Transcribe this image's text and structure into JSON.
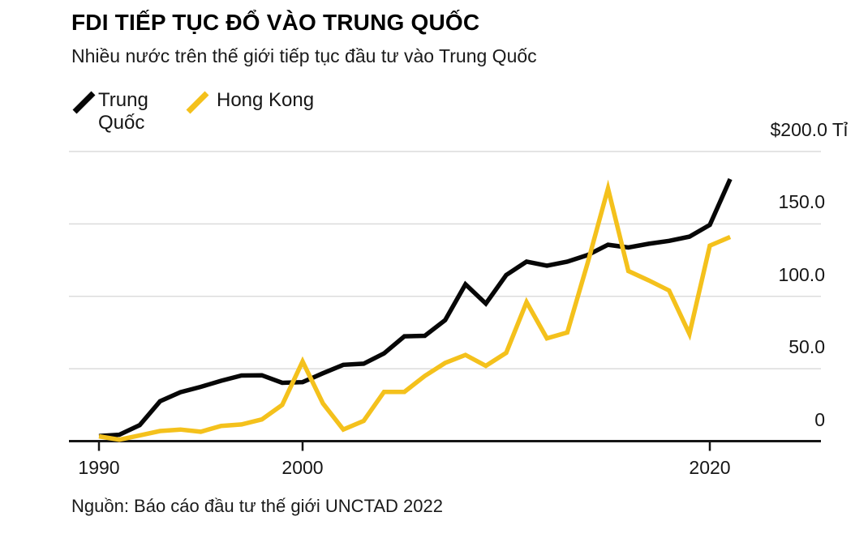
{
  "header": {
    "title": "FDI TIẾP TỤC ĐỔ VÀO TRUNG QUỐC",
    "subtitle": "Nhiều nước trên thế giới tiếp tục đầu tư vào Trung Quốc"
  },
  "legend": [
    {
      "label": "Trung Quốc",
      "color": "#070707"
    },
    {
      "label": "Hong Kong",
      "color": "#F4C11C"
    }
  ],
  "source": "Nguồn: Báo cáo đầu tư thế giới UNCTAD 2022",
  "colors": {
    "background": "#ffffff",
    "gridline": "#dcdcdc",
    "axis": "#161616",
    "text": "#161616",
    "china_line": "#070707",
    "hong_kong_line": "#F4C11C"
  },
  "chart_data": {
    "type": "line",
    "title": "FDI TIẾP TỤC ĐỔ VÀO TRUNG QUỐC",
    "subtitle": "Nhiều nước trên thế giới tiếp tục đầu tư vào Trung Quốc",
    "unit": "Tỉ (USD billions)",
    "x": [
      1990,
      1991,
      1992,
      1993,
      1994,
      1995,
      1996,
      1997,
      1998,
      1999,
      2000,
      2001,
      2002,
      2003,
      2004,
      2005,
      2006,
      2007,
      2008,
      2009,
      2010,
      2011,
      2012,
      2013,
      2014,
      2015,
      2016,
      2017,
      2018,
      2019,
      2020,
      2021
    ],
    "series": [
      {
        "name": "Trung Quốc",
        "color": "#070707",
        "values": [
          3.5,
          4.4,
          11.0,
          27.5,
          33.8,
          37.5,
          41.7,
          45.3,
          45.5,
          40.3,
          40.7,
          46.9,
          52.7,
          53.5,
          60.6,
          72.4,
          72.7,
          83.5,
          108.3,
          95.0,
          114.7,
          124.0,
          121.1,
          123.9,
          128.5,
          135.6,
          133.7,
          136.3,
          138.3,
          141.2,
          149.3,
          181.0
        ]
      },
      {
        "name": "Hong Kong",
        "color": "#F4C11C",
        "values": [
          3.3,
          1.0,
          4.0,
          7.0,
          8.0,
          6.5,
          10.5,
          11.5,
          15.0,
          25.0,
          55.0,
          26.0,
          8.0,
          14.0,
          34.0,
          34.0,
          45.0,
          54.0,
          59.5,
          52.0,
          61.0,
          96.0,
          71.0,
          75.0,
          123.0,
          174.5,
          117.5,
          111.0,
          104.0,
          74.0,
          135.0,
          141.0
        ]
      }
    ],
    "ylim": [
      0,
      200
    ],
    "xlim": [
      1990,
      2021
    ],
    "y_ticks": [
      {
        "value": 200,
        "label": "$200.0 Tỉ"
      },
      {
        "value": 150,
        "label": "150.0"
      },
      {
        "value": 100,
        "label": "100.0"
      },
      {
        "value": 50,
        "label": "50.0"
      },
      {
        "value": 0,
        "label": "0"
      }
    ],
    "x_ticks": [
      {
        "value": 1990,
        "label": "1990"
      },
      {
        "value": 2000,
        "label": "2000"
      },
      {
        "value": 2020,
        "label": "2020"
      }
    ],
    "grid": "horizontal",
    "legend_position": "top-left"
  }
}
